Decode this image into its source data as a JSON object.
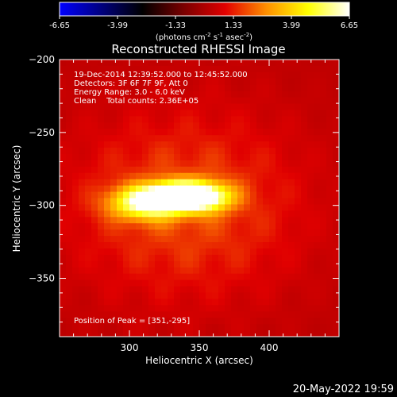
{
  "chart_data": {
    "type": "heatmap",
    "title": "Reconstructed RHESSI Image",
    "xlabel": "Heliocentric X (arcsec)",
    "ylabel": "Heliocentric Y (arcsec)",
    "xlim": [
      250,
      450
    ],
    "ylim": [
      -390,
      -200
    ],
    "x_ticks": [
      300,
      350,
      400
    ],
    "y_ticks": [
      -200,
      -250,
      -300,
      -350
    ],
    "colorbar": {
      "min": -6.65,
      "max": 6.65,
      "ticks": [
        "-6.65",
        "-3.99",
        "-1.33",
        "1.33",
        "3.99",
        "6.65"
      ],
      "unit_label_parts": [
        "(photons cm",
        "-2",
        " s",
        "-1",
        " asec",
        "-2",
        ")"
      ],
      "colors": [
        "#0000ff",
        "#000080",
        "#000000",
        "#7a0000",
        "#e10000",
        "#ff9000",
        "#ffff00",
        "#ffffff"
      ]
    },
    "annotations": [
      "19-Dec-2014 12:39:52.000 to 12:45:52.000",
      "Detectors: 3F 6F 7F 9F, Att 0",
      "Energy Range: 3.0 - 6.0 keV",
      "Clean    Total counts: 2.36E+05"
    ],
    "peak_label": "Position of Peak = [351,-295]",
    "sources": [
      {
        "x": 351,
        "y": -294,
        "sx": 15,
        "sy": 7,
        "amp": 6.6
      },
      {
        "x": 312,
        "y": -298,
        "sx": 18,
        "sy": 8,
        "amp": 5.4
      },
      {
        "x": 330,
        "y": -293,
        "sx": 12,
        "sy": 6,
        "amp": 4.8
      },
      {
        "x": 340,
        "y": -300,
        "sx": 58,
        "sy": 44,
        "amp": 1.6
      }
    ],
    "background": 0.3
  },
  "footer_date": "20-May-2022 19:59"
}
